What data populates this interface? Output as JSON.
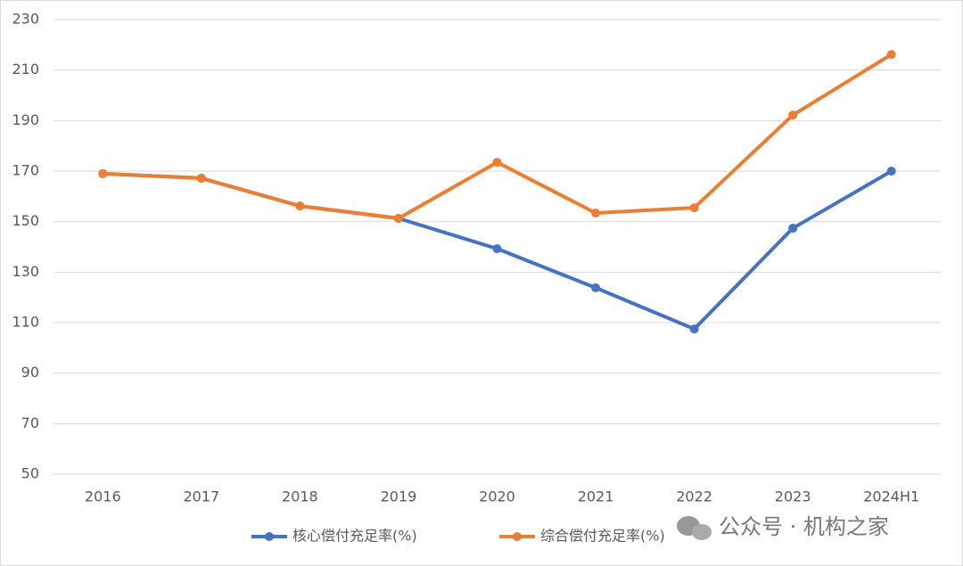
{
  "chart_data": {
    "type": "line",
    "categories": [
      "2016",
      "2017",
      "2018",
      "2019",
      "2020",
      "2021",
      "2022",
      "2023",
      "2024H1"
    ],
    "series": [
      {
        "name": "核心偿付充足率(%)",
        "color": "#4472c4",
        "values": [
          169,
          167.2,
          156.2,
          151.3,
          139.3,
          123.8,
          107.5,
          147.4,
          170
        ]
      },
      {
        "name": "综合偿付充足率(%)",
        "color": "#ed7d31",
        "values": [
          169,
          167.2,
          156.2,
          151.3,
          173.5,
          153.4,
          155.5,
          192.2,
          216.2
        ]
      }
    ],
    "ylim": [
      50,
      230
    ],
    "yticks": [
      50,
      70,
      90,
      110,
      130,
      150,
      170,
      190,
      210,
      230
    ],
    "grid": true,
    "legend": "bottom",
    "watermark": "公众号 · 机构之家"
  }
}
